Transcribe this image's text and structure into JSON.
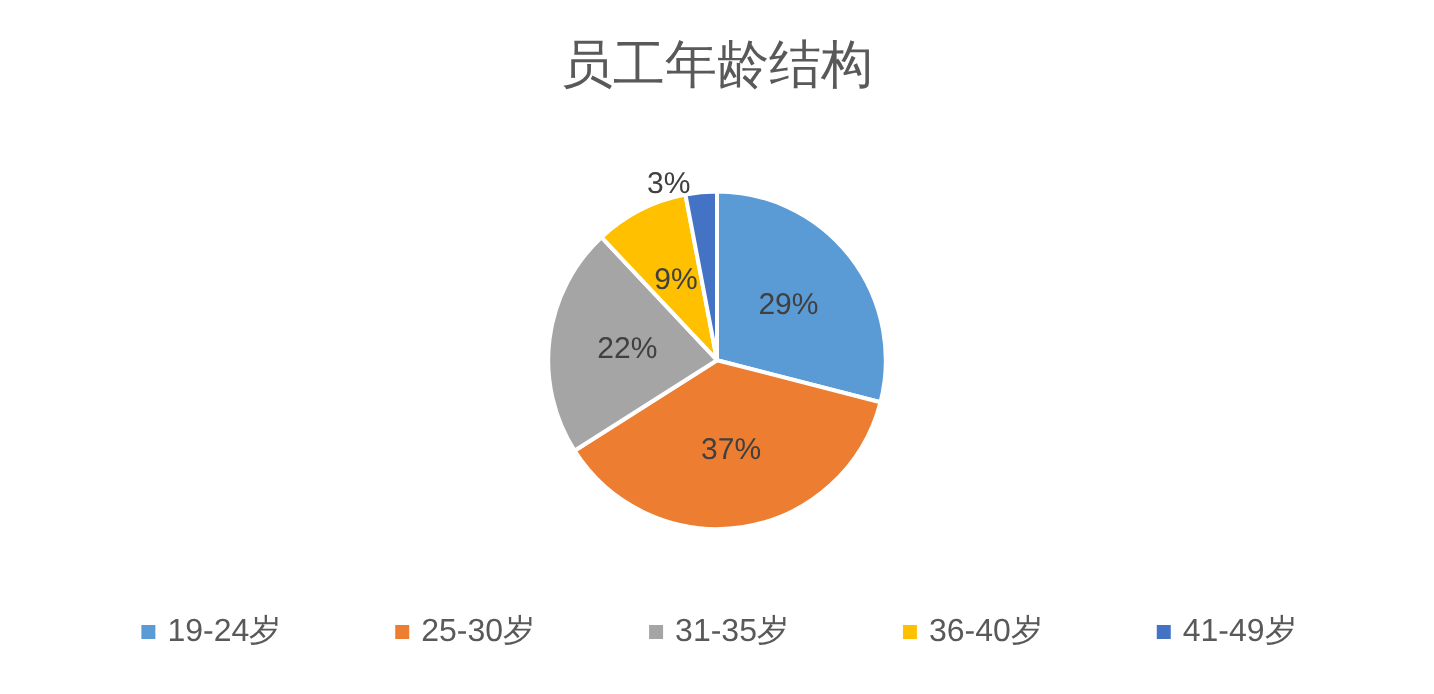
{
  "chart_data": {
    "type": "pie",
    "title": "员工年龄结构",
    "categories": [
      "19-24岁",
      "25-30岁",
      "31-35岁",
      "36-40岁",
      "41-49岁"
    ],
    "values": [
      29,
      37,
      22,
      9,
      3
    ],
    "colors": [
      "#5b9bd5",
      "#ed7d31",
      "#a5a5a5",
      "#ffc000",
      "#4472c4"
    ],
    "value_labels": [
      "29%",
      "37%",
      "22%",
      "9%",
      "3%"
    ],
    "legend": "bottom"
  }
}
